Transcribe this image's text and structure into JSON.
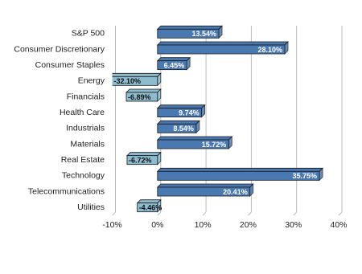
{
  "chart_data": {
    "type": "bar",
    "orientation": "horizontal",
    "categories": [
      "S&P 500",
      "Consumer Discretionary",
      "Consumer Staples",
      "Energy",
      "Financials",
      "Health Care",
      "Industrials",
      "Materials",
      "Real Estate",
      "Technology",
      "Telecommunications",
      "Utilities"
    ],
    "values": [
      13.54,
      28.1,
      6.45,
      -32.1,
      -6.89,
      9.74,
      8.54,
      15.72,
      -6.72,
      35.75,
      20.41,
      -4.46
    ],
    "value_labels": [
      "13.54%",
      "28.10%",
      "6.45%",
      "-32.10%",
      "-6.89%",
      "9.74%",
      "8.54%",
      "15.72%",
      "-6.72%",
      "35.75%",
      "20.41%",
      "-4.46%"
    ],
    "positive_color": "#4a78b0",
    "negative_color": "#8dbccf",
    "xlim": [
      -10,
      40
    ],
    "xticks": [
      {
        "value": -10,
        "label": "-10%"
      },
      {
        "value": 0,
        "label": "0%"
      },
      {
        "value": 10,
        "label": "10%"
      },
      {
        "value": 20,
        "label": "20%"
      },
      {
        "value": 30,
        "label": "30%"
      },
      {
        "value": 40,
        "label": "40%"
      }
    ],
    "grid": true
  }
}
